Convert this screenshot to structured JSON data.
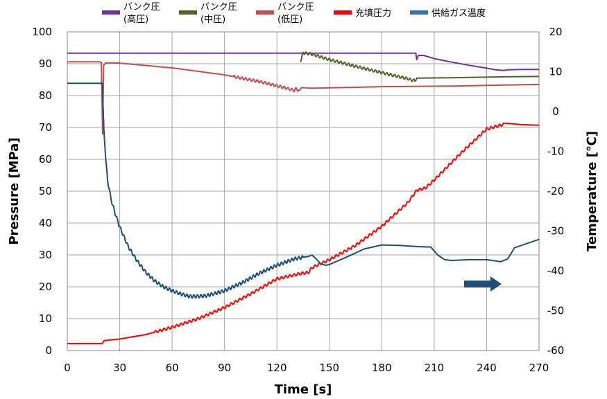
{
  "chart_data": {
    "type": "line",
    "xlabel": "Time [s]",
    "ylabel": "Pressure [MPa]",
    "y2label": "Temperature [℃]",
    "xlim": [
      0,
      270
    ],
    "ylim": [
      0,
      100
    ],
    "y2lim": [
      -60,
      20
    ],
    "x_ticks": [
      0,
      30,
      60,
      90,
      120,
      150,
      180,
      210,
      240,
      270
    ],
    "y_ticks": [
      0,
      10,
      20,
      30,
      40,
      50,
      60,
      70,
      80,
      90,
      100
    ],
    "y2_ticks": [
      -60,
      -50,
      -40,
      -30,
      -20,
      -10,
      0,
      10,
      20
    ],
    "grid": true,
    "legend_position": "top",
    "series": [
      {
        "name": "バンク圧(高圧)",
        "legend_lines": [
          "バンク圧",
          "(高圧)"
        ],
        "color": "#7030a0",
        "axis": "left",
        "x": [
          0,
          199.5,
          200,
          201,
          204,
          210,
          220,
          230,
          240,
          245,
          250,
          252,
          260,
          270
        ],
        "y": [
          93.3,
          93.3,
          91.3,
          92.6,
          92.6,
          91.6,
          90.5,
          89.5,
          88.6,
          88.1,
          87.9,
          88.1,
          88.2,
          88.2
        ]
      },
      {
        "name": "バンク圧(中圧)",
        "legend_lines": [
          "バンク圧",
          "(中圧)"
        ],
        "color": "#4f6228",
        "axis": "left",
        "x": [
          133.5,
          134,
          135,
          140,
          150,
          160,
          170,
          180,
          190,
          195,
          197,
          199,
          200,
          220,
          250,
          270
        ],
        "y": [
          90.5,
          91.5,
          93.4,
          93.0,
          91.3,
          89.9,
          88.5,
          87.2,
          85.9,
          85.3,
          84.9,
          84.7,
          85.5,
          85.6,
          85.9,
          86.0
        ],
        "oscillation": [
          134,
          200,
          0.4,
          2.2
        ]
      },
      {
        "name": "バンク圧(低圧)",
        "legend_lines": [
          "バンク圧",
          "(低圧)"
        ],
        "color": "#c0504d",
        "axis": "left",
        "x": [
          0,
          18.5,
          19.5,
          20.2,
          20.8,
          22,
          30,
          60,
          90,
          110,
          125,
          130,
          131,
          133,
          134,
          140,
          180,
          220,
          270
        ],
        "y": [
          90.6,
          90.6,
          90.3,
          68.0,
          89.5,
          90.3,
          90.2,
          88.7,
          86.5,
          84.4,
          82.4,
          81.6,
          82.2,
          81.3,
          82.5,
          82.3,
          82.8,
          83.0,
          83.5
        ],
        "oscillation": [
          95,
          133,
          0.4,
          2.2
        ]
      },
      {
        "name": "充填圧力",
        "legend_lines": [
          "充填圧力"
        ],
        "color": "#ff0000",
        "axis": "left",
        "x": [
          0,
          20,
          21,
          30,
          45,
          60,
          75,
          90,
          105,
          120,
          134,
          138,
          140,
          150,
          165,
          180,
          195,
          200,
          205,
          210,
          225,
          240,
          250,
          260,
          270
        ],
        "y": [
          2.2,
          2.2,
          3.1,
          3.6,
          5.0,
          7.3,
          10.0,
          13.5,
          17.8,
          22.5,
          24.2,
          24.5,
          26.0,
          28.5,
          33.0,
          39.0,
          46.5,
          50.3,
          51.0,
          53.5,
          61.8,
          69.5,
          71.0,
          70.9,
          70.7
        ],
        "oscillation": [
          50,
          250,
          0.4,
          2.4
        ]
      },
      {
        "name": "供給ガス温度",
        "legend_lines": [
          "供給ガス温度"
        ],
        "color": "#1f4e79",
        "legend_color": "#2e75b6",
        "axis": "right",
        "x": [
          0,
          20,
          21,
          22,
          23,
          25,
          27,
          30,
          35,
          40,
          45,
          50,
          55,
          60,
          65,
          70,
          75,
          80,
          90,
          100,
          110,
          120,
          130,
          135,
          138,
          140,
          142,
          145,
          148,
          150,
          160,
          170,
          180,
          190,
          200,
          205,
          208,
          212,
          216,
          220,
          230,
          240,
          248,
          252,
          256,
          260,
          270
        ],
        "y": [
          7.1,
          7.1,
          -5.0,
          -12.0,
          -17.0,
          -22.0,
          -25.0,
          -29.0,
          -34.0,
          -37.5,
          -40.4,
          -42.5,
          -44.0,
          -45.0,
          -45.8,
          -46.4,
          -46.4,
          -46.2,
          -45.0,
          -43.0,
          -40.6,
          -38.6,
          -37.0,
          -36.6,
          -36.4,
          -36.0,
          -36.8,
          -38.2,
          -38.6,
          -38.4,
          -36.5,
          -34.5,
          -33.5,
          -33.6,
          -33.9,
          -34.0,
          -34.0,
          -36.0,
          -37.2,
          -37.4,
          -37.2,
          -37.2,
          -37.7,
          -37.0,
          -34.2,
          -33.6,
          -32.1
        ],
        "oscillation": [
          22,
          135,
          0.4,
          2.0
        ]
      }
    ],
    "annotations": [
      {
        "type": "arrow",
        "direction": "right",
        "color": "#1f4e79"
      }
    ]
  }
}
